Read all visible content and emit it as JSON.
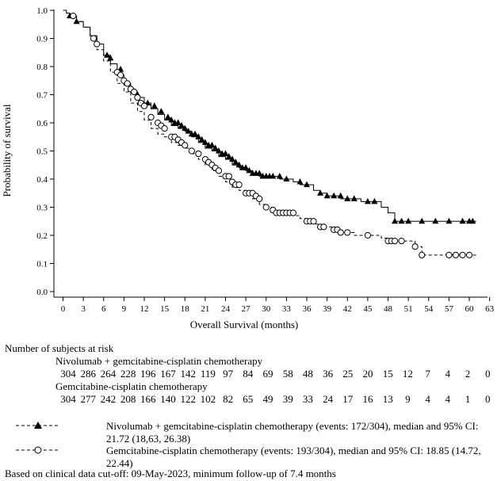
{
  "chart_data": {
    "type": "line",
    "title": "",
    "xlabel": "Overall Survival (months)",
    "ylabel": "Probability of survival",
    "xlim": [
      -1,
      63
    ],
    "ylim": [
      0.0,
      1.0
    ],
    "x_ticks": [
      0,
      3,
      6,
      9,
      12,
      15,
      18,
      21,
      24,
      27,
      30,
      33,
      36,
      39,
      42,
      45,
      48,
      51,
      54,
      57,
      60,
      63
    ],
    "y_ticks": [
      0.0,
      0.1,
      0.2,
      0.3,
      0.4,
      0.5,
      0.6,
      0.7,
      0.8,
      0.9,
      1.0
    ],
    "y_tick_labels": [
      "0.0",
      "0.1",
      "0.2",
      "0.3",
      "0.4",
      "0.5",
      "0.6",
      "0.7",
      "0.8",
      "0.9",
      "1.0"
    ],
    "grid": false,
    "series": [
      {
        "name": "Nivolumab + gemcitabine-cisplatin chemotherapy",
        "marker": "filled-triangle",
        "line_style": "solid",
        "x": [
          0,
          0.5,
          1,
          2,
          3,
          4,
          5,
          6,
          7,
          8,
          9,
          10,
          11,
          12,
          13,
          14,
          15,
          16,
          17,
          18,
          19,
          20,
          21,
          22,
          23,
          24,
          25,
          26,
          27,
          28,
          29,
          30,
          31,
          32,
          33,
          34,
          35,
          36,
          37,
          38,
          39,
          40,
          41,
          42,
          43,
          44,
          45,
          46,
          47,
          48,
          49,
          50,
          51,
          52,
          53,
          54,
          55,
          56,
          57,
          58,
          59,
          60,
          61
        ],
        "y": [
          1.0,
          0.99,
          0.98,
          0.96,
          0.94,
          0.91,
          0.88,
          0.84,
          0.81,
          0.77,
          0.74,
          0.71,
          0.69,
          0.67,
          0.65,
          0.63,
          0.61,
          0.59,
          0.58,
          0.57,
          0.55,
          0.53,
          0.51,
          0.5,
          0.48,
          0.47,
          0.45,
          0.44,
          0.43,
          0.42,
          0.41,
          0.41,
          0.41,
          0.4,
          0.4,
          0.39,
          0.38,
          0.38,
          0.36,
          0.35,
          0.34,
          0.34,
          0.33,
          0.33,
          0.33,
          0.32,
          0.32,
          0.32,
          0.3,
          0.28,
          0.25,
          0.25,
          0.25,
          0.25,
          0.25,
          0.25,
          0.25,
          0.25,
          0.25,
          0.25,
          0.25,
          0.25,
          0.25
        ],
        "censored_x": [
          1,
          2,
          6.5,
          7,
          8.5,
          11,
          12.5,
          13.5,
          14.5,
          15.5,
          16,
          16.5,
          17,
          17.5,
          18,
          18.5,
          19,
          19.5,
          20,
          20.5,
          21,
          21.5,
          22,
          22.5,
          23,
          23.5,
          24,
          24.5,
          25,
          25.5,
          26,
          26.5,
          27,
          27.5,
          28,
          28.5,
          29,
          29.5,
          30,
          30.5,
          31,
          32,
          33,
          35,
          36,
          38,
          39,
          40,
          41,
          42,
          43,
          45,
          46,
          49,
          50,
          51,
          53,
          55,
          57,
          59,
          60,
          60.5
        ],
        "censored_y": [
          0.98,
          0.96,
          0.84,
          0.83,
          0.79,
          0.7,
          0.67,
          0.66,
          0.64,
          0.62,
          0.61,
          0.6,
          0.6,
          0.59,
          0.58,
          0.57,
          0.56,
          0.56,
          0.55,
          0.54,
          0.53,
          0.52,
          0.52,
          0.51,
          0.5,
          0.49,
          0.49,
          0.48,
          0.47,
          0.46,
          0.45,
          0.44,
          0.44,
          0.43,
          0.42,
          0.42,
          0.42,
          0.41,
          0.41,
          0.41,
          0.41,
          0.41,
          0.4,
          0.39,
          0.38,
          0.35,
          0.34,
          0.34,
          0.34,
          0.33,
          0.33,
          0.32,
          0.32,
          0.25,
          0.25,
          0.25,
          0.25,
          0.25,
          0.25,
          0.25,
          0.25,
          0.25
        ]
      },
      {
        "name": "Gemcitabine-cisplatin chemotherapy",
        "marker": "open-circle",
        "line_style": "dashed",
        "x": [
          0,
          0.5,
          1,
          2,
          3,
          4,
          5,
          6,
          7,
          8,
          9,
          10,
          11,
          12,
          13,
          14,
          15,
          16,
          17,
          18,
          19,
          20,
          21,
          22,
          23,
          24,
          25,
          26,
          27,
          28,
          29,
          30,
          31,
          32,
          33,
          34,
          35,
          36,
          37,
          38,
          39,
          40,
          41,
          42,
          43,
          44,
          45,
          46,
          47,
          48,
          49,
          50,
          51,
          52,
          53,
          54,
          55,
          56,
          57,
          58,
          59,
          60,
          61
        ],
        "y": [
          1.0,
          0.99,
          0.98,
          0.96,
          0.94,
          0.9,
          0.86,
          0.82,
          0.78,
          0.74,
          0.71,
          0.67,
          0.64,
          0.61,
          0.58,
          0.56,
          0.55,
          0.53,
          0.52,
          0.51,
          0.49,
          0.47,
          0.45,
          0.43,
          0.41,
          0.39,
          0.37,
          0.36,
          0.35,
          0.33,
          0.31,
          0.3,
          0.28,
          0.28,
          0.28,
          0.27,
          0.26,
          0.25,
          0.24,
          0.23,
          0.23,
          0.22,
          0.21,
          0.21,
          0.2,
          0.2,
          0.2,
          0.2,
          0.19,
          0.18,
          0.18,
          0.18,
          0.18,
          0.16,
          0.13,
          0.13,
          0.13,
          0.13,
          0.13,
          0.13,
          0.13,
          0.13,
          0.13
        ],
        "censored_x": [
          1.5,
          4.5,
          5,
          8,
          8.5,
          9,
          9.5,
          10,
          10.5,
          11,
          11.5,
          12,
          13,
          14,
          14.5,
          15,
          16,
          16.5,
          17,
          17.5,
          18,
          19,
          20,
          21,
          21.5,
          22,
          22.5,
          23,
          24,
          24.5,
          25,
          25.5,
          26,
          27,
          27.5,
          28,
          28.5,
          29,
          30,
          31,
          31.5,
          32,
          32.5,
          33,
          33.5,
          34,
          36,
          36.5,
          37,
          38,
          38.5,
          40,
          40.5,
          41,
          42,
          45,
          48,
          48.5,
          49,
          50,
          52,
          53,
          57,
          58,
          59,
          60
        ],
        "censored_y": [
          0.98,
          0.9,
          0.88,
          0.78,
          0.77,
          0.75,
          0.74,
          0.72,
          0.71,
          0.69,
          0.67,
          0.66,
          0.62,
          0.6,
          0.59,
          0.58,
          0.55,
          0.55,
          0.54,
          0.53,
          0.52,
          0.5,
          0.49,
          0.47,
          0.46,
          0.45,
          0.44,
          0.43,
          0.41,
          0.41,
          0.39,
          0.38,
          0.38,
          0.35,
          0.35,
          0.35,
          0.34,
          0.33,
          0.3,
          0.29,
          0.28,
          0.28,
          0.28,
          0.28,
          0.28,
          0.28,
          0.25,
          0.25,
          0.25,
          0.23,
          0.23,
          0.22,
          0.22,
          0.21,
          0.21,
          0.2,
          0.18,
          0.18,
          0.18,
          0.18,
          0.16,
          0.13,
          0.13,
          0.13,
          0.13,
          0.13
        ]
      }
    ]
  },
  "risk_table": {
    "title": "Number of subjects at risk",
    "groups": [
      {
        "label": "Nivolumab + gemcitabine-cisplatin chemotherapy",
        "values": [
          "304",
          "286",
          "264",
          "228",
          "196",
          "167",
          "142",
          "119",
          "97",
          "84",
          "69",
          "58",
          "48",
          "36",
          "25",
          "20",
          "15",
          "12",
          "7",
          "4",
          "2",
          "0"
        ]
      },
      {
        "label": "Gemcitabine-cisplatin chemotherapy",
        "values": [
          "304",
          "277",
          "242",
          "208",
          "166",
          "140",
          "122",
          "102",
          "82",
          "65",
          "49",
          "39",
          "33",
          "24",
          "17",
          "16",
          "13",
          "9",
          "4",
          "4",
          "1",
          "0"
        ]
      }
    ]
  },
  "legend": {
    "items": [
      {
        "text": "Nivolumab + gemcitabine-cisplatin chemotherapy (events: 172/304), median and 95% CI: 21.72 (18,63, 26.38)"
      },
      {
        "text": "Gemcitabine-cisplatin chemotherapy (events: 193/304), median and 95% CI: 18.85 (14.72, 22.44)"
      }
    ]
  },
  "footnote": "Based on clinical data cut-off: 09-May-2023, minimum follow-up of 7.4 months"
}
